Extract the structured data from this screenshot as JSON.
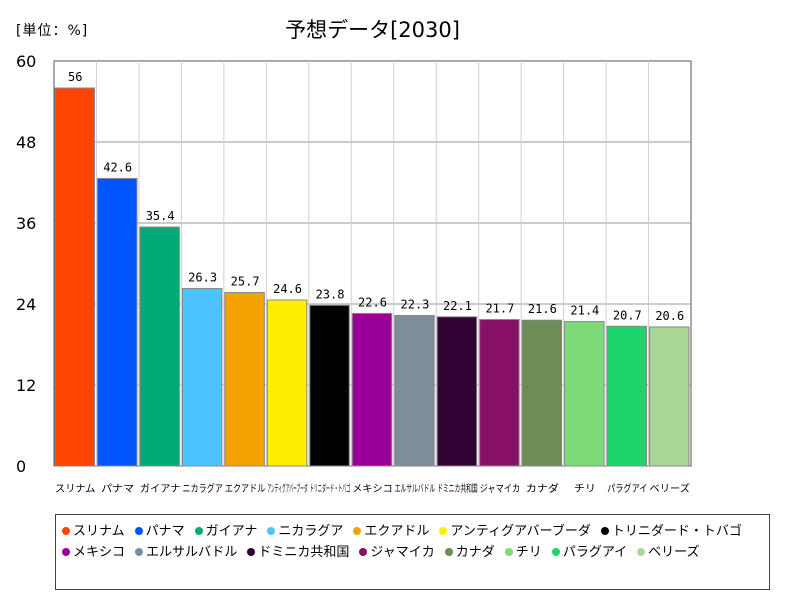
{
  "unit_label": "[単位：%]",
  "chart_data": {
    "type": "bar",
    "title": "予想データ[2030]",
    "xlabel": "",
    "ylabel": "",
    "ylim": [
      0,
      60
    ],
    "yticks": [
      0,
      12,
      24,
      36,
      48,
      60
    ],
    "grid": true,
    "legend_position": "bottom",
    "categories": [
      "スリナム",
      "パナマ",
      "ガイアナ",
      "ニカラグア",
      "エクアドル",
      "アンティグアバーブーダ",
      "トリニダード・トバゴ",
      "メキシコ",
      "エルサルバドル",
      "ドミニカ共和国",
      "ジャマイカ",
      "カナダ",
      "チリ",
      "パラグアイ",
      "ベリーズ"
    ],
    "values": [
      56,
      42.6,
      35.4,
      26.3,
      25.7,
      24.6,
      23.8,
      22.6,
      22.3,
      22.1,
      21.7,
      21.6,
      21.4,
      20.7,
      20.6
    ],
    "colors": [
      "#ff4500",
      "#0055ff",
      "#00aa77",
      "#4dc3ff",
      "#f5a300",
      "#ffee00",
      "#000000",
      "#990099",
      "#7f8c99",
      "#330033",
      "#881166",
      "#6e8c55",
      "#7ddb77",
      "#1cd66c",
      "#a8d696"
    ]
  }
}
